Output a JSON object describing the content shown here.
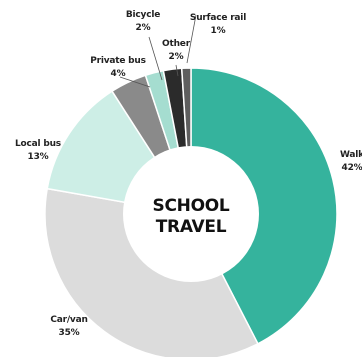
{
  "chart_data": {
    "type": "pie",
    "style": "donut",
    "center_label": [
      "SCHOOL",
      "TRAVEL"
    ],
    "slices": [
      {
        "name": "Walk",
        "value": 42,
        "label": "42%",
        "color": "#35b39d"
      },
      {
        "name": "Car/van",
        "value": 35,
        "label": "35%",
        "color": "#dcdcdc"
      },
      {
        "name": "Local bus",
        "value": 13,
        "label": "13%",
        "color": "#cdeee6"
      },
      {
        "name": "Private bus",
        "value": 4,
        "label": "4%",
        "color": "#8a8a8a"
      },
      {
        "name": "Bicycle",
        "value": 2,
        "label": "2%",
        "color": "#a5ddd0"
      },
      {
        "name": "Other",
        "value": 2,
        "label": "2%",
        "color": "#2b2b2b"
      },
      {
        "name": "Surface rail",
        "value": 1,
        "label": "1%",
        "color": "#5e5e5e"
      }
    ]
  }
}
